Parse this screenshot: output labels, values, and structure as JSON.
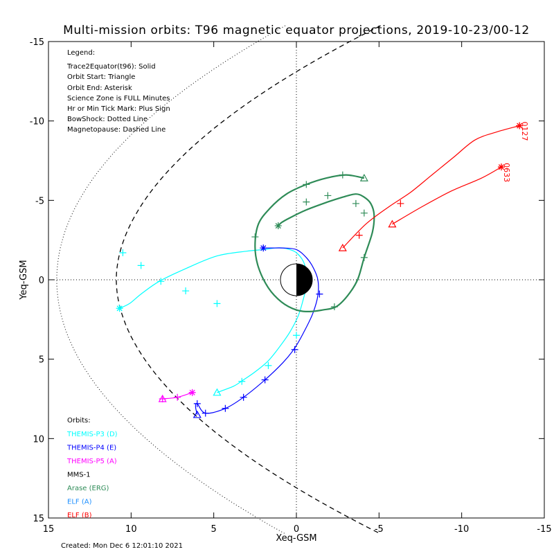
{
  "chart_data": {
    "type": "scatter",
    "title": "Multi-mission orbits: T96 magnetic equator projections, 2019-10-23/00-12",
    "xlabel": "Xeq-GSM",
    "ylabel": "Yeq-GSM",
    "xlim": [
      15,
      -15
    ],
    "ylim": [
      -15,
      15
    ],
    "x_ticks": [
      15,
      10,
      5,
      0,
      -5,
      -10,
      -15
    ],
    "x_tick_labels": [
      "15",
      "10",
      "5",
      "0",
      "-5",
      "-10",
      "-15"
    ],
    "y_ticks": [
      -15,
      -10,
      -5,
      0,
      5,
      10,
      15
    ],
    "y_tick_labels": [
      "-15",
      "-10",
      "-5",
      "0",
      "5",
      "10",
      "15"
    ],
    "grid": "dotted zero lines",
    "legend_title": "Legend:",
    "legend_lines": [
      "Trace2Equator(t96): Solid",
      "Orbit Start: Triangle",
      "Orbit End: Asterisk",
      "Science Zone is FULL Minutes",
      "Hr or Min Tick Mark: Plus Sign",
      "BowShock: Dotted Line",
      "Magnetopause: Dashed Line"
    ],
    "orbits_title": "Orbits:",
    "series": [
      {
        "name": "THEMIS-P3 (D)",
        "color": "#00ffff",
        "start": [
          4.8,
          7.1
        ],
        "end": [
          10.7,
          1.8
        ],
        "x": [
          4.8,
          3.8,
          3.2,
          2.5,
          1.7,
          1.0,
          0.4,
          -0.1,
          -0.4,
          -0.6,
          -0.6,
          -0.4,
          0.0,
          0.4,
          0.8,
          1.3,
          2.0,
          3.0,
          4.8,
          6.7,
          8.3,
          9.4,
          10.1,
          10.7
        ],
        "y": [
          7.1,
          6.7,
          6.3,
          5.8,
          5.1,
          4.2,
          3.3,
          2.3,
          1.3,
          0.4,
          -0.5,
          -1.2,
          -1.7,
          -1.9,
          -2.0,
          -2.0,
          -1.9,
          -1.8,
          -1.5,
          -0.7,
          0.1,
          0.9,
          1.5,
          1.8
        ],
        "ticks": [
          [
            0.0,
            3.5
          ],
          [
            1.7,
            5.4
          ],
          [
            3.3,
            6.4
          ],
          [
            4.8,
            1.5
          ],
          [
            6.7,
            0.7
          ],
          [
            8.2,
            0.1
          ],
          [
            9.4,
            -0.9
          ],
          [
            10.5,
            -1.7
          ]
        ]
      },
      {
        "name": "THEMIS-P4 (E)",
        "color": "#0000ff",
        "start": [
          6.0,
          8.5
        ],
        "end": [
          2.0,
          -2.0
        ],
        "x": [
          6.0,
          6.1,
          6.0,
          5.5,
          4.3,
          3.2,
          1.9,
          0.8,
          0.1,
          -0.5,
          -1.0,
          -1.3,
          -1.3,
          -1.0,
          -0.6,
          0.0,
          0.8,
          1.5,
          2.0
        ],
        "y": [
          8.5,
          8.0,
          7.8,
          8.4,
          8.1,
          7.4,
          6.3,
          5.2,
          4.3,
          3.2,
          2.1,
          1.0,
          0.0,
          -0.8,
          -1.4,
          -1.9,
          -2.0,
          -2.0,
          -2.0
        ],
        "ticks": [
          [
            6.0,
            7.8
          ],
          [
            5.5,
            8.4
          ],
          [
            4.3,
            8.1
          ],
          [
            3.2,
            7.4
          ],
          [
            1.9,
            6.3
          ],
          [
            0.1,
            4.4
          ],
          [
            -1.4,
            0.9
          ]
        ]
      },
      {
        "name": "THEMIS-P5 (A)",
        "color": "#ff00ff",
        "start": [
          8.1,
          7.5
        ],
        "end": [
          6.3,
          7.1
        ],
        "x": [
          8.1,
          7.2,
          6.3
        ],
        "y": [
          7.5,
          7.4,
          7.1
        ],
        "ticks": [
          [
            8.1,
            7.5
          ],
          [
            7.2,
            7.4
          ]
        ]
      },
      {
        "name": "MMS-1",
        "color": "#000000",
        "x": [],
        "y": []
      },
      {
        "name": "Arase (ERG)",
        "color": "#2e8b57",
        "start": [
          -4.1,
          -6.4
        ],
        "end": [
          1.1,
          -3.4
        ],
        "x": [
          -4.1,
          -3.0,
          -1.8,
          -0.6,
          0.6,
          1.6,
          2.3,
          2.5,
          2.3,
          1.7,
          0.9,
          0.0,
          -0.8,
          -1.6,
          -2.4,
          -3.1,
          -3.7,
          -4.1,
          -4.6,
          -4.7,
          -4.5,
          -4.1,
          -3.6,
          -2.8,
          -1.9,
          -0.6,
          0.4,
          0.9,
          1.1
        ],
        "y": [
          -6.4,
          -6.6,
          -6.4,
          -6.0,
          -5.4,
          -4.5,
          -3.5,
          -2.1,
          -0.8,
          0.5,
          1.4,
          1.9,
          2.0,
          1.9,
          1.7,
          1.0,
          0.0,
          -1.4,
          -3.0,
          -4.1,
          -4.8,
          -5.2,
          -5.4,
          -5.2,
          -4.9,
          -4.4,
          -3.9,
          -3.6,
          -3.4
        ],
        "ticks": [
          [
            -0.6,
            -6.0
          ],
          [
            -2.8,
            -6.6
          ],
          [
            2.5,
            -2.7
          ],
          [
            -2.3,
            1.7
          ],
          [
            -4.1,
            -1.4
          ],
          [
            -4.1,
            -4.2
          ],
          [
            -3.6,
            -4.8
          ],
          [
            -1.9,
            -5.3
          ],
          [
            -0.6,
            -4.9
          ]
        ]
      },
      {
        "name": "ELF (A)",
        "color": "#1e90ff",
        "x": [],
        "y": []
      },
      {
        "name": "ELF (B)",
        "color": "#ff0000",
        "start": [
          -2.8,
          -2.0
        ],
        "end": [
          -13.5,
          -9.7
        ],
        "end_label": "0127",
        "x": [
          -2.8,
          -4.2,
          -5.6,
          -6.9,
          -8.2,
          -9.5,
          -10.8,
          -12.1,
          -13.5
        ],
        "y": [
          -2.0,
          -3.5,
          -4.6,
          -5.5,
          -6.6,
          -7.7,
          -8.8,
          -9.3,
          -9.7
        ],
        "ticks": [
          [
            -6.3,
            -4.8
          ]
        ]
      },
      {
        "name": "ELF (B)",
        "color": "#ff0000",
        "start": [
          -5.8,
          -3.5
        ],
        "end": [
          -12.4,
          -7.1
        ],
        "end_label": "0633",
        "x": [
          -5.8,
          -7.6,
          -9.4,
          -11.2,
          -12.4
        ],
        "y": [
          -3.5,
          -4.6,
          -5.6,
          -6.4,
          -7.1
        ],
        "ticks": [
          [
            -3.8,
            -2.8
          ]
        ]
      }
    ],
    "boundaries": {
      "bowshock": {
        "style": "dotted"
      },
      "magnetopause": {
        "style": "dashed"
      }
    },
    "created_label": "Created: Mon Dec  6 12:01:10 2021"
  }
}
